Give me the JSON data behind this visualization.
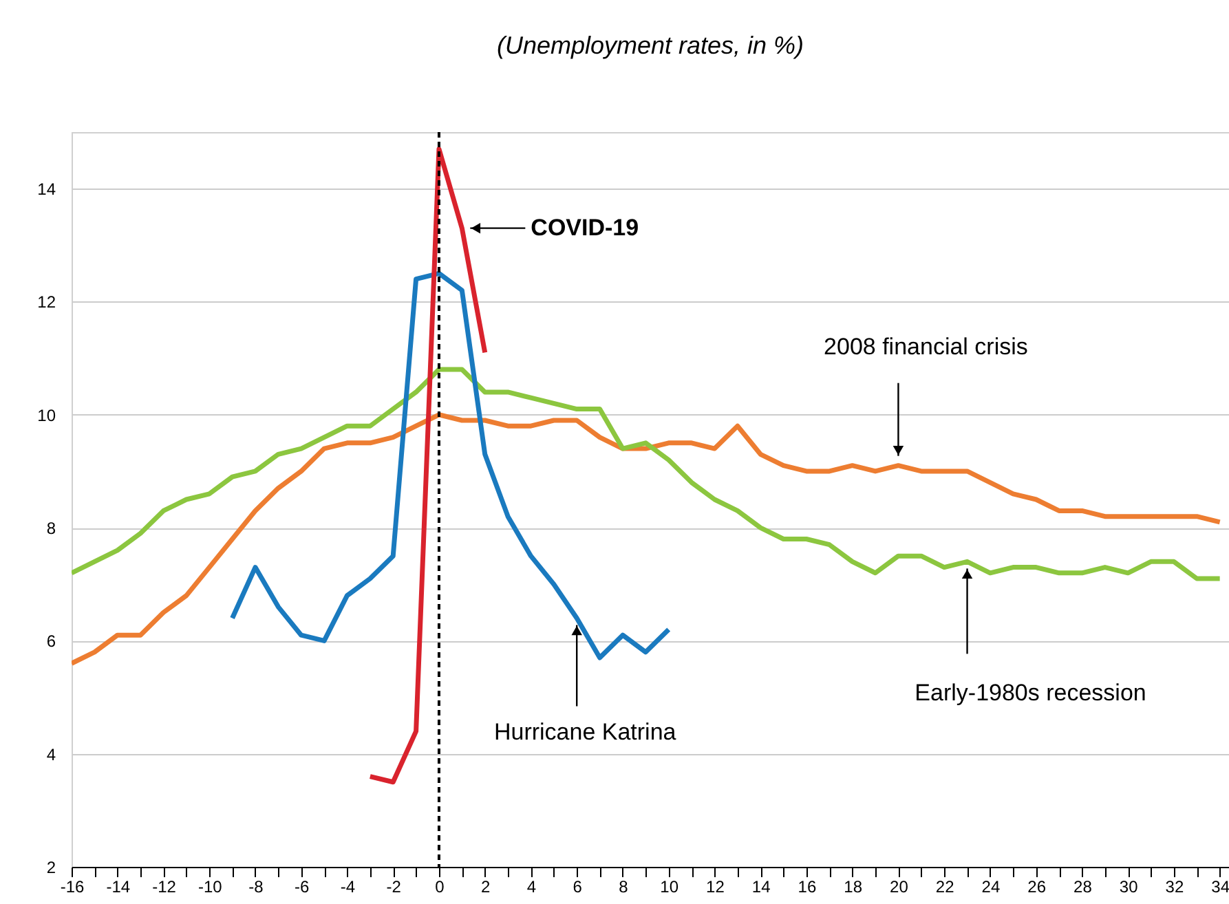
{
  "chart_data": {
    "type": "line",
    "title": "(Unemployment rates, in %)",
    "x": [
      -16,
      -15,
      -14,
      -13,
      -12,
      -11,
      -10,
      -9,
      -8,
      -7,
      -6,
      -5,
      -4,
      -3,
      -2,
      -1,
      0,
      1,
      2,
      3,
      4,
      5,
      6,
      7,
      8,
      9,
      10,
      11,
      12,
      13,
      14,
      15,
      16,
      17,
      18,
      19,
      20,
      21,
      22,
      23,
      24,
      25,
      26,
      27,
      28,
      29,
      30,
      31,
      32,
      33,
      34
    ],
    "series": [
      {
        "color": "#ed7d31",
        "values": [
          5.6,
          5.8,
          6.1,
          6.1,
          6.5,
          6.8,
          7.3,
          7.8,
          8.3,
          8.7,
          9.0,
          9.4,
          9.5,
          9.5,
          9.6,
          9.8,
          10.0,
          9.9,
          9.9,
          9.8,
          9.8,
          9.9,
          9.9,
          9.6,
          9.4,
          9.4,
          9.5,
          9.5,
          9.4,
          9.8,
          9.3,
          9.1,
          9.0,
          9.0,
          9.1,
          9.0,
          9.1,
          9.0,
          9.0,
          9.0,
          8.8,
          8.6,
          8.5,
          8.3,
          8.3,
          8.2,
          8.2,
          8.2,
          8.2,
          8.2,
          8.1
        ]
      },
      {
        "color": "#8cc63f",
        "values": [
          7.2,
          7.4,
          7.6,
          7.9,
          8.3,
          8.5,
          8.6,
          8.9,
          9.0,
          9.3,
          9.4,
          9.6,
          9.8,
          9.8,
          10.1,
          10.4,
          10.8,
          10.8,
          10.4,
          10.4,
          10.3,
          10.2,
          10.1,
          10.1,
          9.4,
          9.5,
          9.2,
          8.8,
          8.5,
          8.3,
          8.0,
          7.8,
          7.8,
          7.7,
          7.4,
          7.2,
          7.5,
          7.5,
          7.3,
          7.4,
          7.2,
          7.3,
          7.3,
          7.2,
          7.2,
          7.3,
          7.2,
          7.4,
          7.4,
          7.1,
          7.1
        ]
      },
      {
        "color": "#1a7abf",
        "x": [
          -9,
          -8,
          -7,
          -6,
          -5,
          -4,
          -3,
          -2,
          -1,
          0,
          1,
          2,
          3,
          4,
          5,
          6,
          7,
          8,
          9,
          10
        ],
        "values": [
          6.4,
          7.3,
          6.6,
          6.1,
          6.0,
          6.8,
          7.1,
          7.5,
          12.4,
          12.5,
          12.2,
          9.3,
          8.2,
          7.5,
          7.0,
          6.4,
          5.7,
          6.1,
          5.8,
          6.2
        ]
      },
      {
        "color": "#d9232d",
        "x": [
          -3,
          -2,
          -1,
          0,
          1,
          2
        ],
        "values": [
          3.6,
          3.5,
          4.4,
          14.7,
          13.3,
          11.1
        ]
      }
    ],
    "annotations": [
      {
        "text": "COVID-19",
        "x": 1,
        "y": 13.3
      },
      {
        "text": "2008 financial crisis",
        "x": 20,
        "y": 9.1
      },
      {
        "text": "Hurricane Katrina",
        "x": 6,
        "y": 6.4
      },
      {
        "text": "Early-1980s recession",
        "x": 23,
        "y": 7.4
      }
    ],
    "ref_lines": [
      {
        "axis": "x",
        "value": 0,
        "color": "#000000",
        "line_style": "dashed"
      }
    ],
    "xlim": [
      -16,
      34.4
    ],
    "xticks": [
      -16,
      {
        "value": -15,
        "label": null
      },
      -14,
      {
        "value": -13,
        "label": null
      },
      -12,
      {
        "value": -11,
        "label": null
      },
      -10,
      {
        "value": -9,
        "label": null
      },
      -8,
      {
        "value": -7,
        "label": null
      },
      -6,
      {
        "value": -5,
        "label": null
      },
      -4,
      {
        "value": -3,
        "label": null
      },
      -2,
      {
        "value": -1,
        "label": null
      },
      0,
      {
        "value": 1,
        "label": null
      },
      2,
      {
        "value": 3,
        "label": null
      },
      4,
      {
        "value": 5,
        "label": null
      },
      6,
      {
        "value": 7,
        "label": null
      },
      8,
      {
        "value": 9,
        "label": null
      },
      10,
      {
        "value": 11,
        "label": null
      },
      12,
      {
        "value": 13,
        "label": null
      },
      14,
      {
        "value": 15,
        "label": null
      },
      16,
      {
        "value": 17,
        "label": null
      },
      18,
      {
        "value": 19,
        "label": null
      },
      20,
      {
        "value": 21,
        "label": null
      },
      22,
      {
        "value": 23,
        "label": null
      },
      24,
      {
        "value": 25,
        "label": null
      },
      26,
      {
        "value": 27,
        "label": null
      },
      28,
      {
        "value": 29,
        "label": null
      },
      30,
      {
        "value": 31,
        "label": null
      },
      32,
      {
        "value": 33,
        "label": null
      },
      34
    ],
    "ylim": [
      2,
      15
    ],
    "yticks": [
      2,
      4,
      6,
      8,
      10,
      12,
      14
    ],
    "grid": "y",
    "legend": false
  }
}
